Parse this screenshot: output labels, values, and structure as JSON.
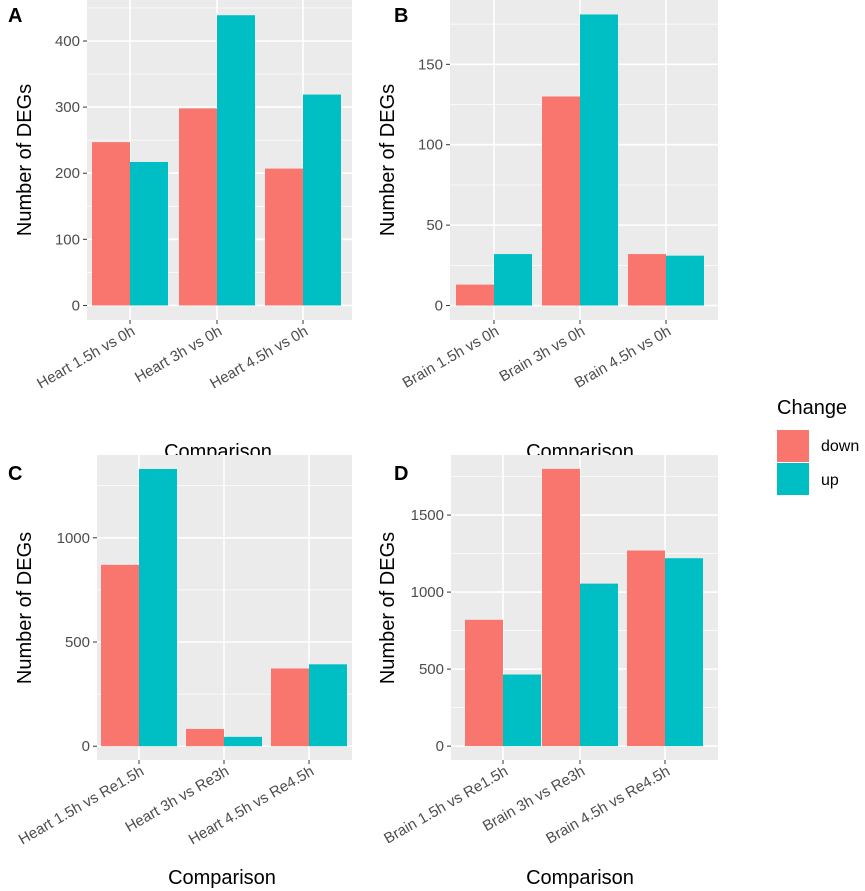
{
  "colors": {
    "down": "#F8766D",
    "up": "#00BFC4",
    "panel_bg": "#EBEBEB",
    "grid": "#FFFFFF"
  },
  "legend": {
    "title": "Change",
    "items": [
      {
        "key": "down",
        "label": "down"
      },
      {
        "key": "up",
        "label": "up"
      }
    ]
  },
  "chart_data": [
    {
      "panel": "A",
      "type": "bar",
      "xlabel": "Comparison",
      "ylabel": "Number of DEGs",
      "categories": [
        "Heart 1.5h vs 0h",
        "Heart 3h vs 0h",
        "Heart 4.5h vs 0h"
      ],
      "series": [
        {
          "name": "down",
          "values": [
            247,
            298,
            207
          ]
        },
        {
          "name": "up",
          "values": [
            217,
            439,
            319
          ]
        }
      ],
      "ylim": [
        -22,
        462
      ],
      "yticks": [
        0,
        100,
        200,
        300,
        400
      ]
    },
    {
      "panel": "B",
      "type": "bar",
      "xlabel": "Comparison",
      "ylabel": "Number of DEGs",
      "categories": [
        "Brain 1.5h vs 0h",
        "Brain 3h vs 0h",
        "Brain 4.5h vs 0h"
      ],
      "series": [
        {
          "name": "down",
          "values": [
            13,
            130,
            32
          ]
        },
        {
          "name": "up",
          "values": [
            32,
            181,
            31
          ]
        }
      ],
      "ylim": [
        -9,
        190
      ],
      "yticks": [
        0,
        50,
        100,
        150
      ]
    },
    {
      "panel": "C",
      "type": "bar",
      "xlabel": "Comparison",
      "ylabel": "Number of DEGs",
      "categories": [
        "Heart 1.5h vs Re1.5h",
        "Heart 3h vs Re3h",
        "Heart 4.5h vs Re4.5h"
      ],
      "series": [
        {
          "name": "down",
          "values": [
            870,
            83,
            373
          ]
        },
        {
          "name": "up",
          "values": [
            1330,
            45,
            393
          ]
        }
      ],
      "ylim": [
        -66,
        1397
      ],
      "yticks": [
        0,
        500,
        1000
      ]
    },
    {
      "panel": "D",
      "type": "bar",
      "xlabel": "Comparison",
      "ylabel": "Number of DEGs",
      "categories": [
        "Brain 1.5h vs Re1.5h",
        "Brain 3h vs Re3h",
        "Brain 4.5h vs Re4.5h"
      ],
      "series": [
        {
          "name": "down",
          "values": [
            820,
            1800,
            1270
          ]
        },
        {
          "name": "up",
          "values": [
            465,
            1055,
            1220
          ]
        }
      ],
      "ylim": [
        -90,
        1890
      ],
      "yticks": [
        0,
        500,
        1000,
        1500
      ]
    }
  ]
}
